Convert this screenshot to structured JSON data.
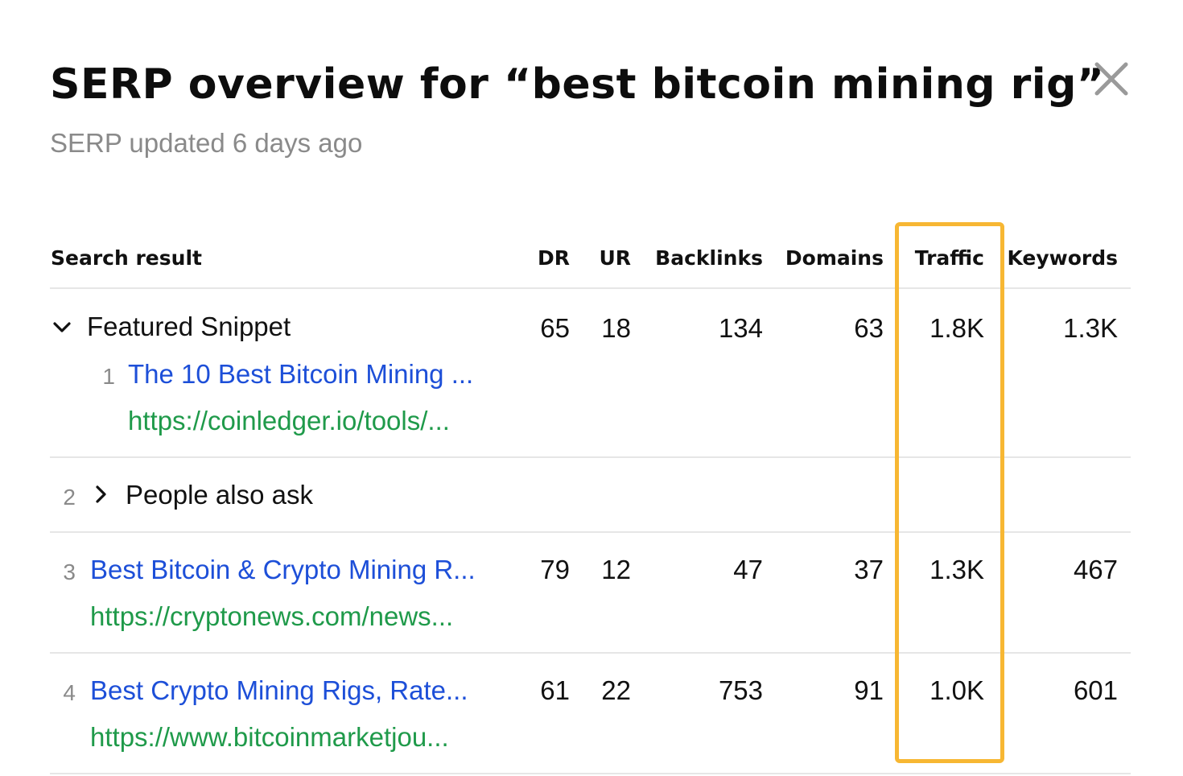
{
  "dialog": {
    "title": "SERP overview for “best bitcoin mining rig”",
    "subtitle": "SERP updated 6 days ago",
    "close_icon": "close-icon"
  },
  "table": {
    "columns": [
      "Search result",
      "DR",
      "UR",
      "Backlinks",
      "Domains",
      "Traffic",
      "Keywords"
    ],
    "highlighted_column": "Traffic",
    "highlight_color": "#f7b733",
    "rows": [
      {
        "type": "featured-snippet",
        "label": "Featured Snippet",
        "expanded": true,
        "dr": "65",
        "ur": "18",
        "backlinks": "134",
        "domains": "63",
        "traffic": "1.8K",
        "keywords": "1.3K",
        "child": {
          "rank": "1",
          "title": "The 10 Best Bitcoin Mining ...",
          "url": "https://coinledger.io/tools/..."
        }
      },
      {
        "type": "people-also-ask",
        "rank": "2",
        "label": "People also ask",
        "expanded": false
      },
      {
        "type": "result",
        "rank": "3",
        "title": "Best Bitcoin & Crypto Mining R...",
        "url": "https://cryptonews.com/news...",
        "dr": "79",
        "ur": "12",
        "backlinks": "47",
        "domains": "37",
        "traffic": "1.3K",
        "keywords": "467"
      },
      {
        "type": "result",
        "rank": "4",
        "title": "Best Crypto Mining Rigs, Rate...",
        "url": "https://www.bitcoinmarketjou...",
        "dr": "61",
        "ur": "22",
        "backlinks": "753",
        "domains": "91",
        "traffic": "1.0K",
        "keywords": "601"
      }
    ]
  },
  "colors": {
    "link": "#1d4fd8",
    "url": "#1f9a4a",
    "muted": "#8a8a8a"
  }
}
